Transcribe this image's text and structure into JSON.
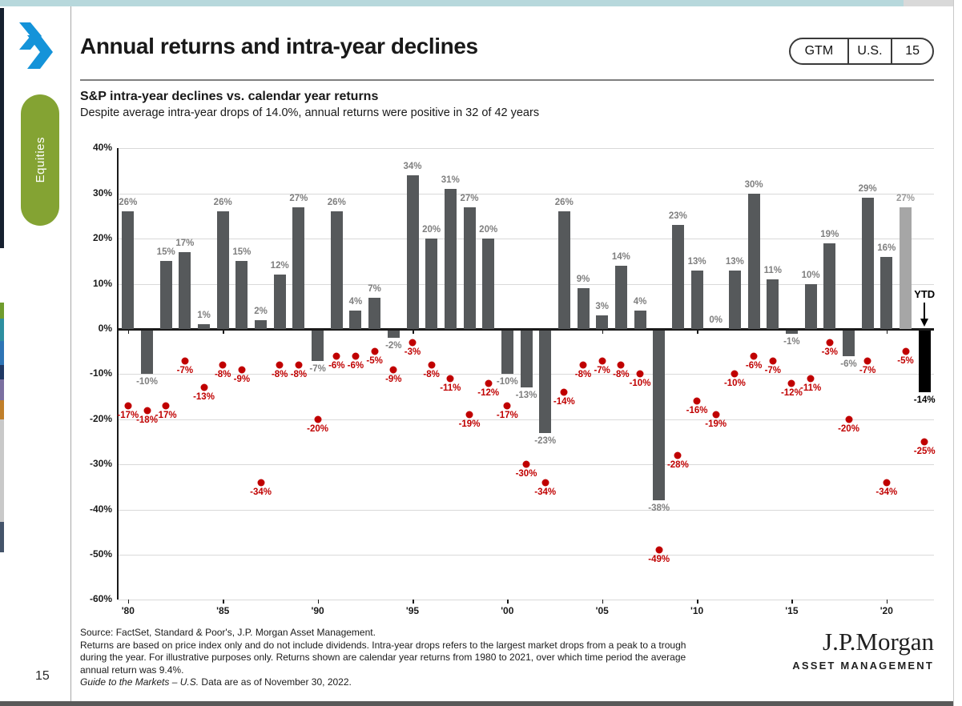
{
  "header": {
    "title": "Annual returns and intra-year declines",
    "badge": {
      "gtm": "GTM",
      "region": "U.S.",
      "page": "15"
    }
  },
  "sidebar": {
    "tab": "Equities",
    "page_number": "15"
  },
  "heading": {
    "title": "S&P intra-year declines vs. calendar year returns",
    "subtitle": "Despite average intra-year drops of 14.0%, annual returns were positive in 32 of 42 years"
  },
  "chart_data": {
    "type": "bar+scatter",
    "title": "S&P intra-year declines vs. calendar year returns",
    "xlabel": "",
    "ylabel": "",
    "ylim": [
      -60,
      40
    ],
    "grid": true,
    "years": [
      1980,
      1981,
      1982,
      1983,
      1984,
      1985,
      1986,
      1987,
      1988,
      1989,
      1990,
      1991,
      1992,
      1993,
      1994,
      1995,
      1996,
      1997,
      1998,
      1999,
      2000,
      2001,
      2002,
      2003,
      2004,
      2005,
      2006,
      2007,
      2008,
      2009,
      2010,
      2011,
      2012,
      2013,
      2014,
      2015,
      2016,
      2017,
      2018,
      2019,
      2020,
      2021,
      2022
    ],
    "series": [
      {
        "name": "Calendar year returns",
        "type": "bar",
        "values": [
          26,
          -10,
          15,
          17,
          1,
          26,
          15,
          2,
          12,
          27,
          -7,
          26,
          4,
          7,
          -2,
          34,
          20,
          31,
          27,
          20,
          -10,
          -13,
          -23,
          26,
          9,
          3,
          14,
          4,
          -38,
          23,
          13,
          0,
          13,
          30,
          11,
          -1,
          10,
          19,
          -6,
          29,
          16,
          27,
          -14
        ]
      },
      {
        "name": "Intra-year declines",
        "type": "scatter",
        "values": [
          -17,
          -18,
          -17,
          -7,
          -13,
          -8,
          -9,
          -34,
          -8,
          -8,
          -20,
          -6,
          -6,
          -5,
          -9,
          -3,
          -8,
          -11,
          -19,
          -12,
          -17,
          -30,
          -34,
          -14,
          -8,
          -7,
          -8,
          -10,
          -49,
          -28,
          -16,
          -19,
          -10,
          -6,
          -7,
          -12,
          -11,
          -3,
          -20,
          -7,
          -34,
          -5,
          -25
        ]
      }
    ],
    "yticks": [
      40,
      30,
      20,
      10,
      0,
      -10,
      -20,
      -30,
      -40,
      -50,
      -60
    ],
    "xticks": [
      {
        "year": 1980,
        "label": "'80"
      },
      {
        "year": 1985,
        "label": "'85"
      },
      {
        "year": 1990,
        "label": "'90"
      },
      {
        "year": 1995,
        "label": "'95"
      },
      {
        "year": 2000,
        "label": "'00"
      },
      {
        "year": 2005,
        "label": "'05"
      },
      {
        "year": 2010,
        "label": "'10"
      },
      {
        "year": 2015,
        "label": "'15"
      },
      {
        "year": 2020,
        "label": "'20"
      }
    ],
    "special": {
      "light_bar_year": 2021,
      "black_bar_year": 2022,
      "ytd_label": "YTD",
      "ytd_value_label": "-14%"
    }
  },
  "footer": {
    "line1": "Source: FactSet, Standard & Poor's, J.P. Morgan Asset Management.",
    "line2": "Returns are based on price index only and do not include dividends. Intra-year drops refers to the largest market drops from a peak to a trough",
    "line3": "during the year. For illustrative purposes only. Returns shown are calendar year returns from 1980 to 2021, over which time period the average",
    "line4": "annual return was 9.4%.",
    "line5_italic": "Guide to the Markets – U.S.",
    "line5_rest": " Data are as of November 30, 2022."
  },
  "logo": {
    "main": "J.P.Morgan",
    "sub": "ASSET MANAGEMENT"
  },
  "colors": {
    "bar": "#56595b",
    "bar_light": "#a6a6a6",
    "bar_black": "#000000",
    "dot": "#c00000",
    "bar_label": "#7f7f7f",
    "bar_label_light": "#9b9b9b",
    "axis": "#1a1a1a",
    "grid": "#d9d9d9",
    "accent_blue": "#1493d9",
    "equities_green": "#84a333"
  }
}
